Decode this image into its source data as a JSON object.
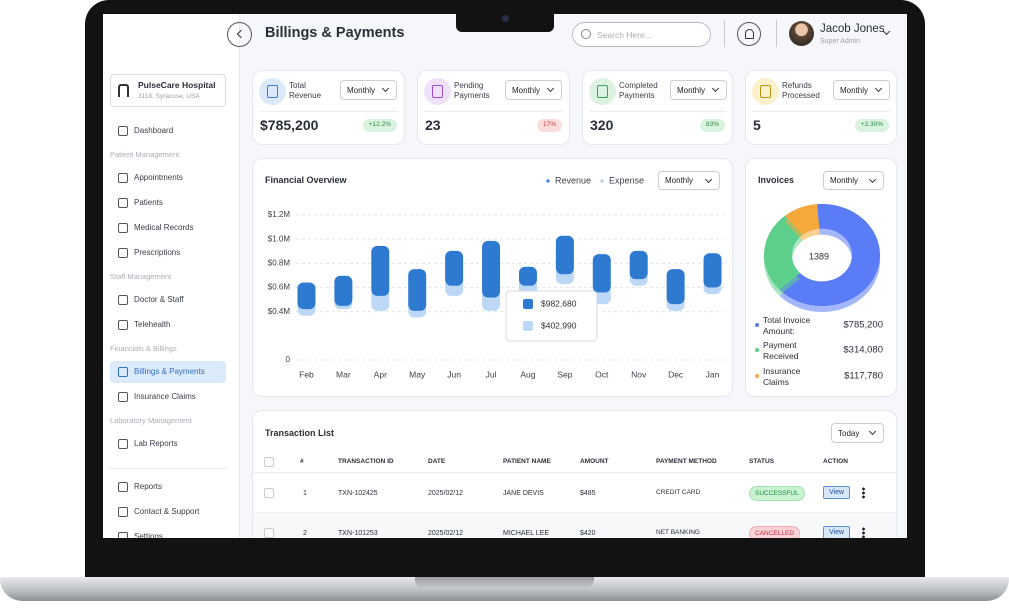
{
  "header": {
    "title": "Billings & Payments",
    "search_placeholder": "Search Here...",
    "user": {
      "name": "Jacob Jones",
      "role": "Super Admin"
    }
  },
  "sidebar": {
    "hospital": {
      "name": "PulseCare Hospital",
      "address": "3118, Syracuse, USA"
    },
    "menu": [
      {
        "kind": "item",
        "label": "Dashboard"
      },
      {
        "kind": "heading",
        "label": "Patient Management"
      },
      {
        "kind": "item",
        "label": "Appointments"
      },
      {
        "kind": "item",
        "label": "Patients"
      },
      {
        "kind": "item",
        "label": "Medical Records"
      },
      {
        "kind": "item",
        "label": "Prescriptions"
      },
      {
        "kind": "heading",
        "label": "Staff Management"
      },
      {
        "kind": "item",
        "label": "Doctor & Staff"
      },
      {
        "kind": "item",
        "label": "Telehealth"
      },
      {
        "kind": "heading",
        "label": "Financials & Billings"
      },
      {
        "kind": "item",
        "label": "Billings & Payments",
        "active": true
      },
      {
        "kind": "item",
        "label": "Insurance Claims"
      },
      {
        "kind": "heading",
        "label": "Laboratory Management"
      },
      {
        "kind": "item",
        "label": "Lab Reports"
      }
    ],
    "bottom_menu": [
      {
        "kind": "item",
        "label": "Reports"
      },
      {
        "kind": "item",
        "label": "Contact & Support"
      },
      {
        "kind": "item",
        "label": "Settings"
      }
    ]
  },
  "stats": [
    {
      "label": "Total Revenue",
      "period": "Monthly",
      "value": "$785,200",
      "change": "+12.2%",
      "tone": "up",
      "icon_color": "#dbe9fb",
      "icon_stroke": "#3b7dd8"
    },
    {
      "label": "Pending Payments",
      "period": "Monthly",
      "value": "23",
      "change": "17%",
      "tone": "down",
      "icon_color": "#f0e1fa",
      "icon_stroke": "#9b4fd0"
    },
    {
      "label": "Completed Payments",
      "period": "Monthly",
      "value": "320",
      "change": "83%",
      "tone": "up",
      "icon_color": "#dcf3e1",
      "icon_stroke": "#3aa55a"
    },
    {
      "label": "Refunds Processed",
      "period": "Monthly",
      "value": "5",
      "change": "+3.30%",
      "tone": "up",
      "icon_color": "#faf1cc",
      "icon_stroke": "#b8960f"
    }
  ],
  "financial_overview": {
    "title": "Financial Overview",
    "period": "Monthly",
    "chart_data": {
      "type": "range-bar",
      "categories": [
        "Feb",
        "Mar",
        "Apr",
        "May",
        "Jun",
        "Jul",
        "Aug",
        "Sep",
        "Oct",
        "Nov",
        "Dec",
        "Jan"
      ],
      "series": [
        {
          "name": "Expense",
          "color": "#bcd8f6",
          "low": [
            366000,
            421000,
            407000,
            352000,
            531000,
            407000,
            338000,
            628000,
            462000,
            614000,
            407000,
            545000
          ],
          "high": [
            481000,
            508000,
            591000,
            467000,
            674000,
            577000,
            674000,
            770000,
            619000,
            729000,
            522000,
            660000
          ]
        },
        {
          "name": "Revenue",
          "color": "#2f7ad1",
          "low": [
            421000,
            448000,
            531000,
            407000,
            614000,
            517000,
            614000,
            710000,
            559000,
            669000,
            462000,
            600000
          ],
          "high": [
            641000,
            697000,
            945000,
            752000,
            903000,
            986000,
            772000,
            1028000,
            876000,
            903000,
            752000,
            883000
          ]
        }
      ],
      "legend_order": [
        "Revenue",
        "Expense"
      ],
      "ylim": [
        0,
        1200000
      ],
      "yticks": [
        {
          "value": 0,
          "label": "0"
        },
        {
          "value": 400000,
          "label": "$0.4M"
        },
        {
          "value": 600000,
          "label": "$0.6M"
        },
        {
          "value": 800000,
          "label": "$0.8M"
        },
        {
          "value": 1000000,
          "label": "$1.0M"
        },
        {
          "value": 1200000,
          "label": "$1.2M"
        }
      ],
      "grid": true,
      "tooltip": {
        "revenue": "$982,680",
        "expense": "$402,990"
      }
    }
  },
  "invoices": {
    "title": "Invoices",
    "period": "Monthly",
    "chart_data": {
      "type": "donut",
      "center_label": "1389",
      "categories": [
        "Total Invoice Amount:",
        "Payment Received",
        "Insurance Claims"
      ],
      "values": [
        785200,
        314080,
        117780
      ],
      "value_labels": [
        "$785,200",
        "$314,080",
        "$117,780"
      ],
      "colors": [
        "#5b7cf7",
        "#5ccf8c",
        "#f6a93b"
      ]
    }
  },
  "transactions": {
    "title": "Transaction List",
    "period": "Today",
    "columns": [
      "#",
      "TRANSACTION ID",
      "DATE",
      "PATIENT NAME",
      "AMOUNT",
      "PAYMENT METHOD",
      "STATUS",
      "ACTION"
    ],
    "rows": [
      {
        "cells": [
          "1",
          "TXN-102425",
          "2025/02/12",
          "JANE DEVIS",
          "$485",
          "CREDIT CARD",
          "SUCCESSFUL",
          "View"
        ],
        "tone": "success"
      },
      {
        "cells": [
          "2",
          "TXN-101253",
          "2025/02/12",
          "MICHAEL LEE",
          "$420",
          "NET BANKING",
          "CANCELLED",
          "View"
        ],
        "tone": "danger"
      }
    ]
  }
}
